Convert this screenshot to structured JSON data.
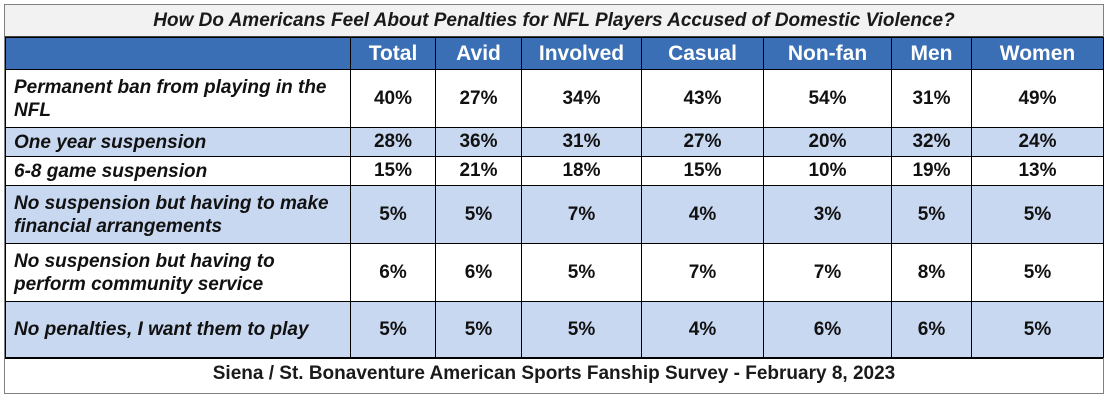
{
  "chart_data": {
    "type": "table",
    "title": "How Do Americans Feel About Penalties for NFL Players Accused of Domestic Violence?",
    "columns": [
      "Total",
      "Avid",
      "Involved",
      "Casual",
      "Non-fan",
      "Men",
      "Women"
    ],
    "rows": [
      {
        "label": "Permanent ban from playing in the NFL",
        "values": [
          "40%",
          "27%",
          "34%",
          "43%",
          "54%",
          "31%",
          "49%"
        ]
      },
      {
        "label": "One year suspension",
        "values": [
          "28%",
          "36%",
          "31%",
          "27%",
          "20%",
          "32%",
          "24%"
        ]
      },
      {
        "label": "6-8 game suspension",
        "values": [
          "15%",
          "21%",
          "18%",
          "15%",
          "10%",
          "19%",
          "13%"
        ]
      },
      {
        "label": "No suspension but having to make financial arrangements",
        "values": [
          "5%",
          "5%",
          "7%",
          "4%",
          "3%",
          "5%",
          "5%"
        ]
      },
      {
        "label": "No suspension but having to perform community service",
        "values": [
          "6%",
          "6%",
          "5%",
          "7%",
          "7%",
          "8%",
          "5%"
        ]
      },
      {
        "label": "No penalties, I want them to play",
        "values": [
          "5%",
          "5%",
          "5%",
          "4%",
          "6%",
          "6%",
          "5%"
        ]
      }
    ],
    "footer": "Siena / St. Bonaventure American Sports Fanship Survey - February 8, 2023"
  },
  "colors": {
    "header_blue": "#3a6fb6",
    "row_band": "#c9d8f1",
    "title_band": "#f2f2f2"
  }
}
